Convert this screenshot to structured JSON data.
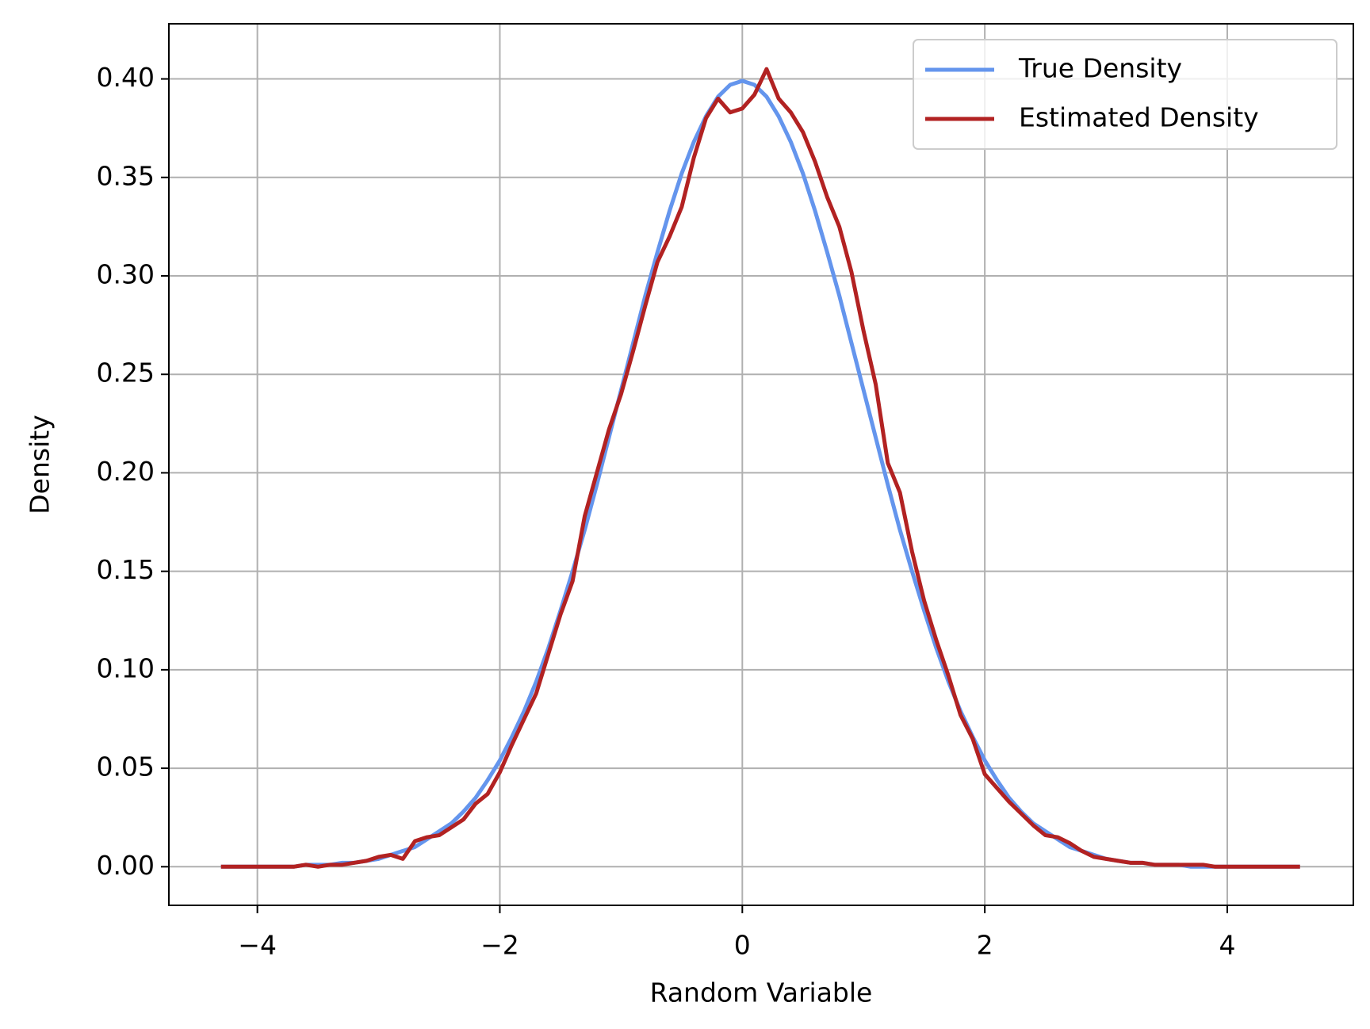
{
  "chart_data": {
    "type": "line",
    "xlabel": "Random Variable",
    "ylabel": "Density",
    "x": [
      -4.3,
      -4.2,
      -4.1,
      -4.0,
      -3.9,
      -3.8,
      -3.7,
      -3.6,
      -3.5,
      -3.4,
      -3.3,
      -3.2,
      -3.1,
      -3.0,
      -2.9,
      -2.8,
      -2.7,
      -2.6,
      -2.5,
      -2.4,
      -2.3,
      -2.2,
      -2.1,
      -2.0,
      -1.9,
      -1.8,
      -1.7,
      -1.6,
      -1.5,
      -1.4,
      -1.3,
      -1.2,
      -1.1,
      -1.0,
      -0.9,
      -0.8,
      -0.7,
      -0.6,
      -0.5,
      -0.4,
      -0.3,
      -0.2,
      -0.1,
      0.0,
      0.1,
      0.2,
      0.3,
      0.4,
      0.5,
      0.6,
      0.7,
      0.8,
      0.9,
      1.0,
      1.1,
      1.2,
      1.3,
      1.4,
      1.5,
      1.6,
      1.7,
      1.8,
      1.9,
      2.0,
      2.1,
      2.2,
      2.3,
      2.4,
      2.5,
      2.6,
      2.7,
      2.8,
      2.9,
      3.0,
      3.1,
      3.2,
      3.3,
      3.4,
      3.5,
      3.6,
      3.7,
      3.8,
      3.9,
      4.0,
      4.1,
      4.2,
      4.3,
      4.4,
      4.5,
      4.6
    ],
    "series": [
      {
        "name": "True Density",
        "color": "#6495ed",
        "values": [
          0,
          0,
          0,
          0,
          0,
          0,
          0,
          0.001,
          0.001,
          0.001,
          0.002,
          0.002,
          0.003,
          0.004,
          0.006,
          0.008,
          0.01,
          0.014,
          0.018,
          0.022,
          0.028,
          0.035,
          0.044,
          0.054,
          0.066,
          0.079,
          0.094,
          0.111,
          0.13,
          0.15,
          0.171,
          0.194,
          0.218,
          0.242,
          0.266,
          0.29,
          0.312,
          0.333,
          0.352,
          0.368,
          0.381,
          0.391,
          0.397,
          0.399,
          0.397,
          0.391,
          0.381,
          0.368,
          0.352,
          0.333,
          0.312,
          0.29,
          0.266,
          0.242,
          0.218,
          0.194,
          0.171,
          0.15,
          0.13,
          0.111,
          0.094,
          0.079,
          0.066,
          0.054,
          0.044,
          0.035,
          0.028,
          0.022,
          0.018,
          0.014,
          0.01,
          0.008,
          0.006,
          0.004,
          0.003,
          0.002,
          0.002,
          0.001,
          0.001,
          0.001,
          0,
          0,
          0,
          0,
          0,
          0,
          0,
          0,
          0,
          0
        ]
      },
      {
        "name": "Estimated Density",
        "color": "#b22222",
        "values": [
          0,
          0,
          0,
          0,
          0,
          0,
          0,
          0.001,
          0,
          0.001,
          0.001,
          0.002,
          0.003,
          0.005,
          0.006,
          0.004,
          0.013,
          0.015,
          0.016,
          0.02,
          0.024,
          0.032,
          0.037,
          0.048,
          0.062,
          0.075,
          0.088,
          0.108,
          0.128,
          0.145,
          0.178,
          0.2,
          0.222,
          0.24,
          0.262,
          0.285,
          0.307,
          0.32,
          0.335,
          0.36,
          0.38,
          0.39,
          0.383,
          0.385,
          0.392,
          0.405,
          0.39,
          0.383,
          0.373,
          0.358,
          0.34,
          0.325,
          0.302,
          0.272,
          0.245,
          0.205,
          0.19,
          0.16,
          0.135,
          0.115,
          0.097,
          0.077,
          0.065,
          0.047,
          0.04,
          0.033,
          0.027,
          0.021,
          0.016,
          0.015,
          0.012,
          0.008,
          0.005,
          0.004,
          0.003,
          0.002,
          0.002,
          0.001,
          0.001,
          0.001,
          0.001,
          0.001,
          0,
          0,
          0,
          0,
          0,
          0,
          0,
          0
        ]
      }
    ],
    "xlim": [
      -4.73,
      5.04
    ],
    "ylim": [
      -0.0196,
      0.428
    ],
    "xticks": [
      {
        "value": -4,
        "label": "−4"
      },
      {
        "value": -2,
        "label": "−2"
      },
      0,
      2,
      4
    ],
    "yticks": [
      {
        "value": 0,
        "label": "0.00"
      },
      {
        "value": 0.05,
        "label": "0.05"
      },
      {
        "value": 0.1,
        "label": "0.10"
      },
      {
        "value": 0.15,
        "label": "0.15"
      },
      {
        "value": 0.2,
        "label": "0.20"
      },
      {
        "value": 0.25,
        "label": "0.25"
      },
      {
        "value": 0.3,
        "label": "0.30"
      },
      {
        "value": 0.35,
        "label": "0.35"
      },
      {
        "value": 0.4,
        "label": "0.40"
      }
    ],
    "grid": true,
    "legend": "upper right"
  }
}
